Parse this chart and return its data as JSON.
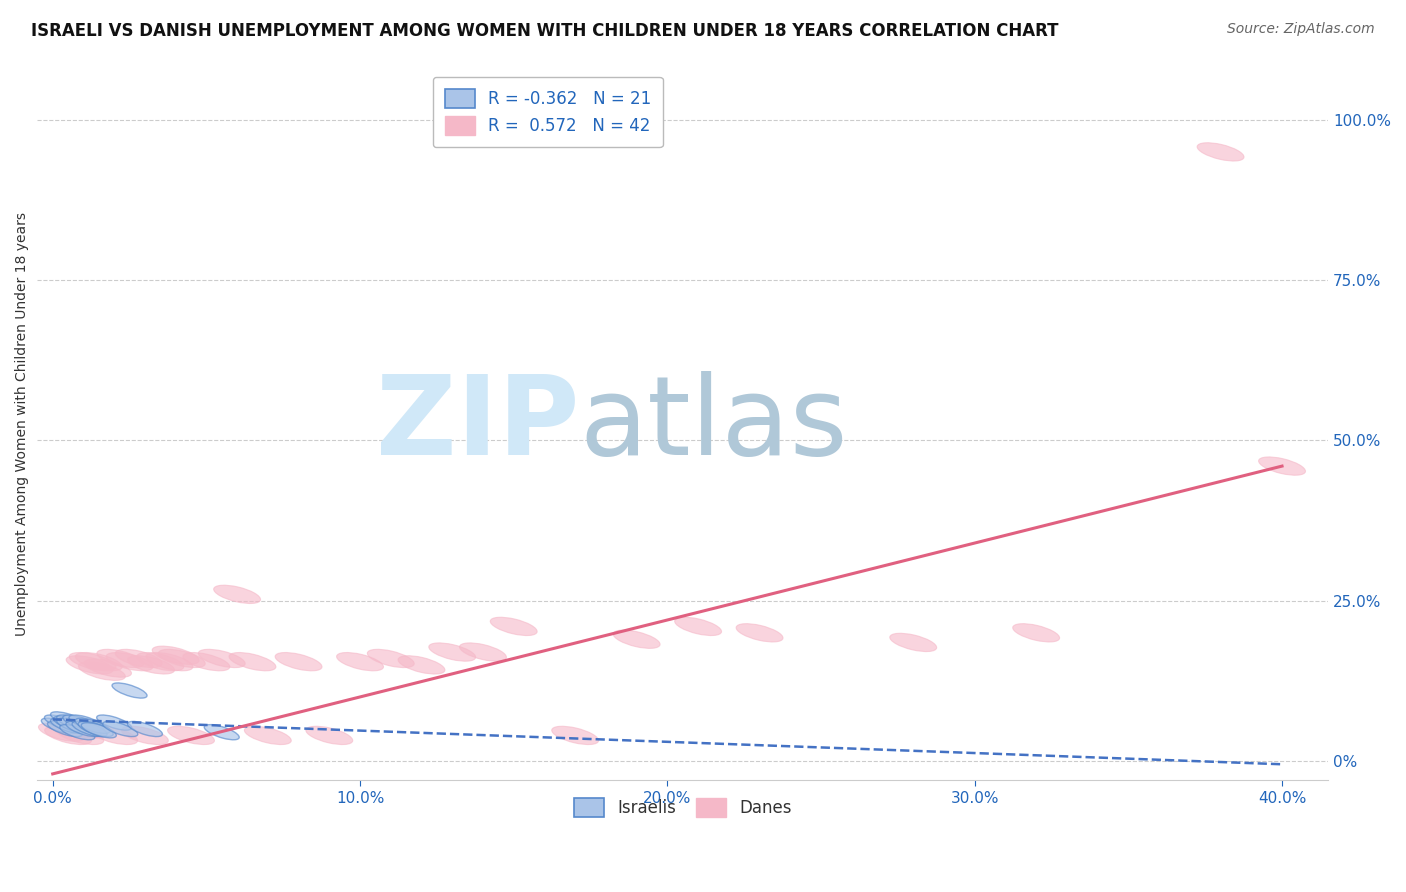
{
  "title": "ISRAELI VS DANISH UNEMPLOYMENT AMONG WOMEN WITH CHILDREN UNDER 18 YEARS CORRELATION CHART",
  "source": "Source: ZipAtlas.com",
  "ylabel": "Unemployment Among Women with Children Under 18 years",
  "xlabel_ticks": [
    "0.0%",
    "10.0%",
    "20.0%",
    "30.0%",
    "40.0%"
  ],
  "xlabel_vals": [
    0.0,
    0.1,
    0.2,
    0.3,
    0.4
  ],
  "ylabel_right_ticks": [
    "100.0%",
    "75.0%",
    "50.0%",
    "25.0%",
    "0%"
  ],
  "ylabel_right_vals": [
    1.0,
    0.75,
    0.5,
    0.25,
    0.0
  ],
  "ylim": [
    -0.03,
    1.08
  ],
  "xlim": [
    -0.005,
    0.415
  ],
  "israelis_x": [
    0.002,
    0.003,
    0.004,
    0.005,
    0.005,
    0.006,
    0.007,
    0.007,
    0.008,
    0.009,
    0.01,
    0.011,
    0.012,
    0.013,
    0.014,
    0.015,
    0.02,
    0.022,
    0.025,
    0.03,
    0.055
  ],
  "israelis_y": [
    0.055,
    0.06,
    0.05,
    0.065,
    0.055,
    0.058,
    0.06,
    0.055,
    0.045,
    0.06,
    0.05,
    0.06,
    0.05,
    0.055,
    0.05,
    0.048,
    0.06,
    0.05,
    0.11,
    0.05,
    0.045
  ],
  "danes_x": [
    0.003,
    0.005,
    0.007,
    0.009,
    0.01,
    0.012,
    0.013,
    0.015,
    0.016,
    0.018,
    0.02,
    0.022,
    0.025,
    0.028,
    0.03,
    0.032,
    0.035,
    0.038,
    0.04,
    0.042,
    0.045,
    0.05,
    0.055,
    0.06,
    0.065,
    0.07,
    0.08,
    0.09,
    0.1,
    0.11,
    0.12,
    0.13,
    0.14,
    0.15,
    0.17,
    0.19,
    0.21,
    0.23,
    0.28,
    0.32,
    0.38,
    0.4
  ],
  "danes_y": [
    0.045,
    0.04,
    0.05,
    0.04,
    0.05,
    0.15,
    0.155,
    0.155,
    0.14,
    0.145,
    0.04,
    0.16,
    0.155,
    0.16,
    0.04,
    0.15,
    0.155,
    0.155,
    0.165,
    0.16,
    0.04,
    0.155,
    0.16,
    0.26,
    0.155,
    0.04,
    0.155,
    0.04,
    0.155,
    0.16,
    0.15,
    0.17,
    0.17,
    0.21,
    0.04,
    0.19,
    0.21,
    0.2,
    0.185,
    0.2,
    0.95,
    0.46
  ],
  "israeli_color": "#aac4e8",
  "israeli_edge_color": "#5588cc",
  "dane_color": "#f5b8c8",
  "dane_edge_color": "#f5b8c8",
  "israeli_line_color": "#4472c4",
  "dane_line_color": "#e06080",
  "israeli_R": -0.362,
  "israeli_N": 21,
  "dane_R": 0.572,
  "dane_N": 42,
  "watermark_zip": "ZIP",
  "watermark_atlas": "atlas",
  "watermark_color_zip": "#d0e8f8",
  "watermark_color_atlas": "#b0c8d8",
  "background_color": "#ffffff",
  "grid_color": "#cccccc",
  "title_fontsize": 12,
  "source_fontsize": 10,
  "axis_label_fontsize": 10,
  "tick_fontsize": 11,
  "legend_fontsize": 12
}
